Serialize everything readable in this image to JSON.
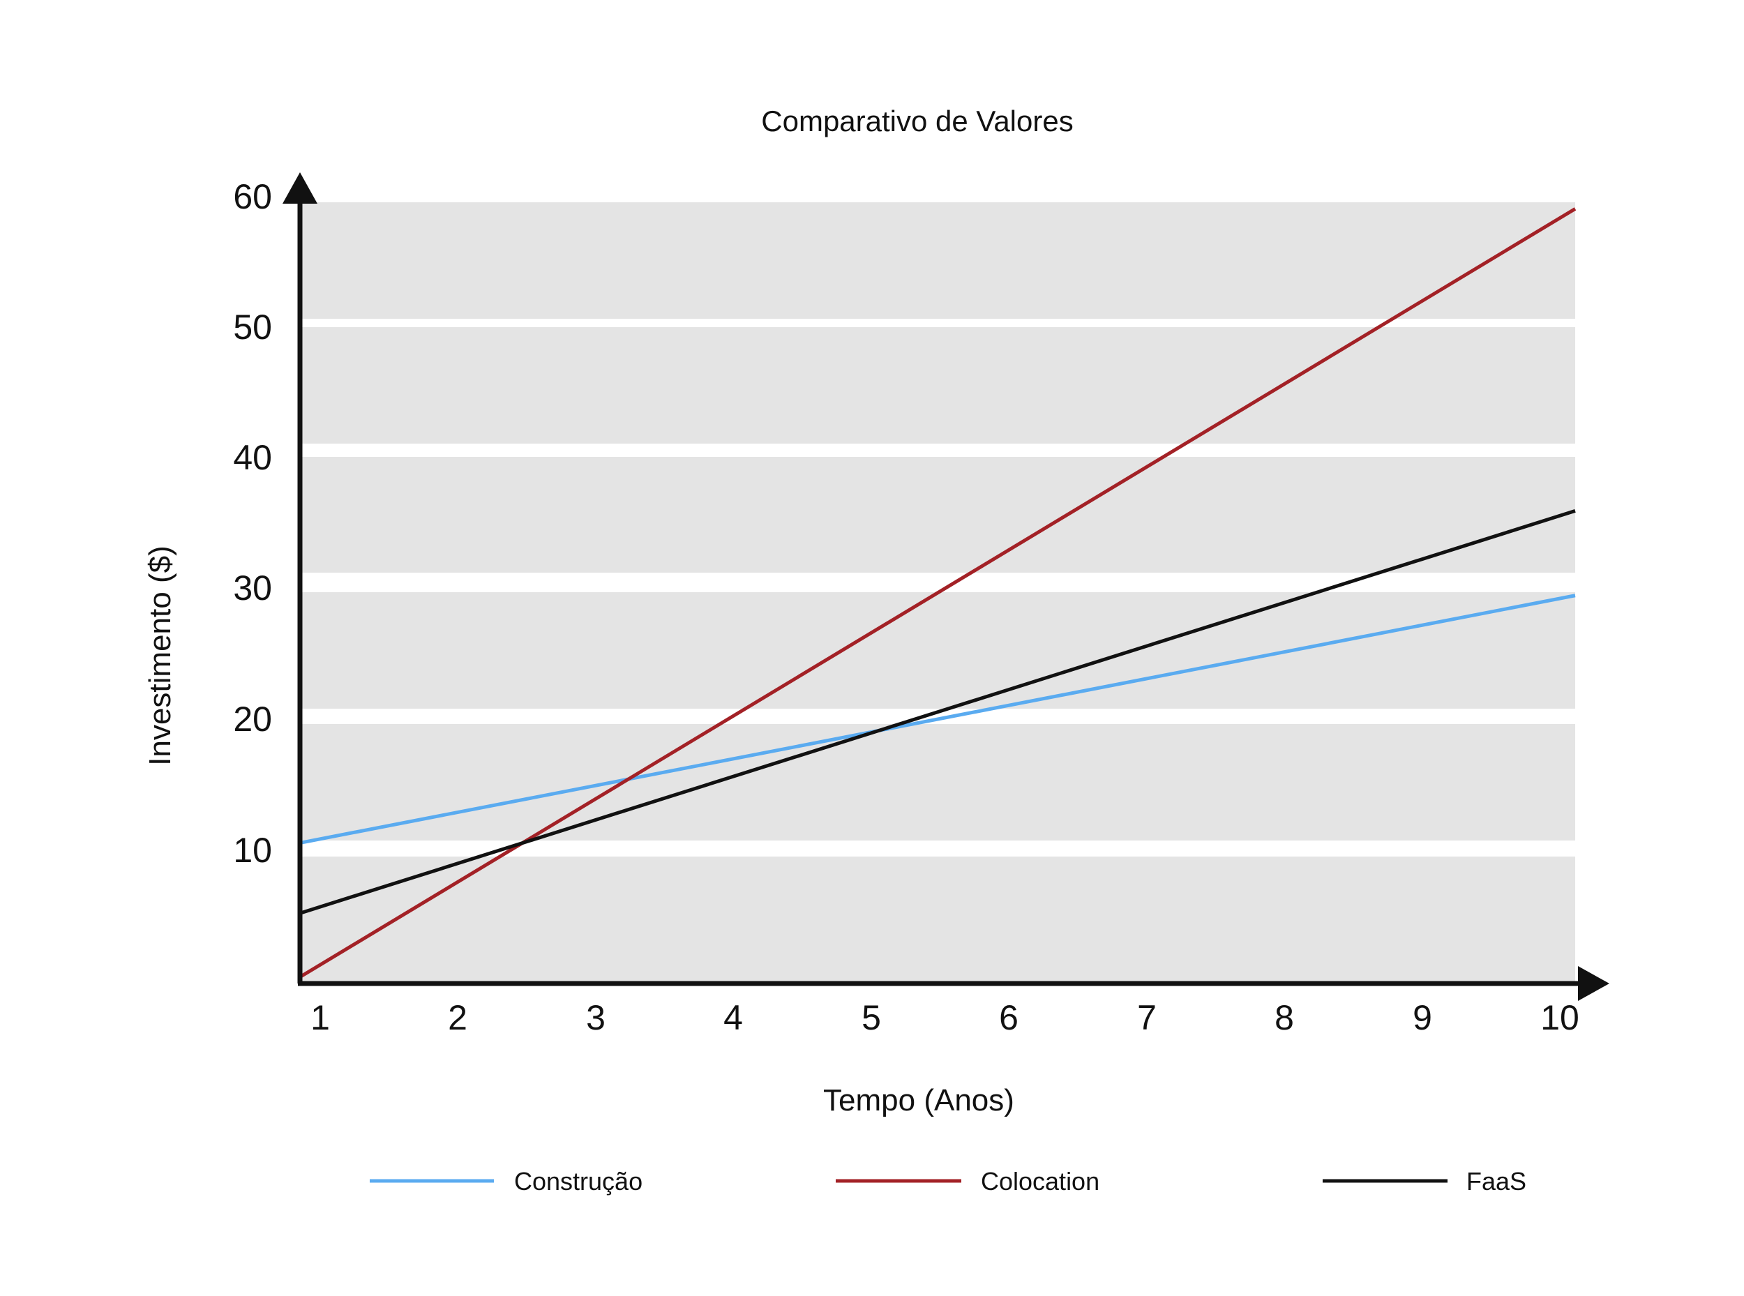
{
  "chart_data": {
    "type": "line",
    "title": "Comparativo de Valores",
    "xlabel": "Tempo (Anos)",
    "ylabel": "Investimento ($)",
    "x_ticks": [
      "1",
      "2",
      "3",
      "4",
      "5",
      "6",
      "7",
      "8",
      "9",
      "10"
    ],
    "y_ticks": [
      "10",
      "20",
      "30",
      "40",
      "50",
      "60"
    ],
    "xlim": [
      1,
      10
    ],
    "ylim": [
      0,
      60
    ],
    "grid": "horizontal bands",
    "legend_position": "bottom",
    "series": [
      {
        "name": "Construção",
        "color": "#5aabf0",
        "x": [
          1,
          10
        ],
        "y": [
          10.8,
          29.8
        ]
      },
      {
        "name": "Colocation",
        "color": "#a32126",
        "x": [
          1,
          10
        ],
        "y": [
          0.5,
          59.5
        ]
      },
      {
        "name": "FaaS",
        "color": "#111111",
        "x": [
          1,
          10
        ],
        "y": [
          5.4,
          36.3
        ]
      }
    ]
  },
  "colors": {
    "band": "#e4e4e4",
    "axis": "#111111"
  }
}
